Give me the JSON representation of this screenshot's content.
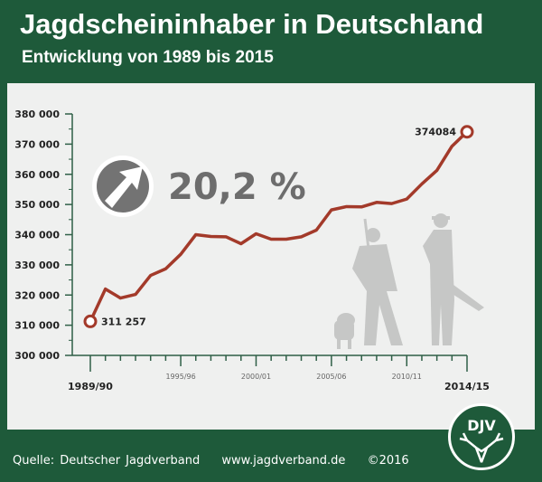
{
  "header": {
    "title": "Jagdscheininhaber in Deutschland",
    "subtitle": "Entwicklung von 1989 bis 2015"
  },
  "footer": {
    "source": "Quelle: Deutscher Jagdverband",
    "url": "www.jagdverband.de",
    "copyright": "©2016"
  },
  "logo": {
    "text": "DJV"
  },
  "badge": {
    "value": "20,2 %",
    "icon": "arrow-up-right-icon"
  },
  "colors": {
    "line": "#a33a2a",
    "green": "#1e5a3a",
    "axis": "#2f5f47"
  },
  "chart_data": {
    "type": "line",
    "title": "Jagdscheininhaber in Deutschland",
    "ylim": [
      300000,
      380000
    ],
    "yticks": [
      "300 000",
      "310 000",
      "320 000",
      "330 000",
      "340 000",
      "350 000",
      "360 000",
      "370 000",
      "380 000"
    ],
    "xticklabels": [
      {
        "index": 0,
        "label": "1989/90",
        "major": true
      },
      {
        "index": 6,
        "label": "1995/96"
      },
      {
        "index": 11,
        "label": "2000/01"
      },
      {
        "index": 16,
        "label": "2005/06"
      },
      {
        "index": 21,
        "label": "2010/11"
      },
      {
        "index": 25,
        "label": "2014/15",
        "major": true
      }
    ],
    "values": [
      311257,
      322000,
      319000,
      320200,
      326500,
      328700,
      333500,
      340000,
      339400,
      339300,
      337000,
      340300,
      338500,
      338500,
      339300,
      341500,
      348200,
      349300,
      349200,
      350700,
      350300,
      351800,
      356800,
      361300,
      369300,
      374084
    ],
    "annotations": [
      {
        "index": 0,
        "label": "311 257"
      },
      {
        "index": 25,
        "label": "374084"
      }
    ]
  }
}
